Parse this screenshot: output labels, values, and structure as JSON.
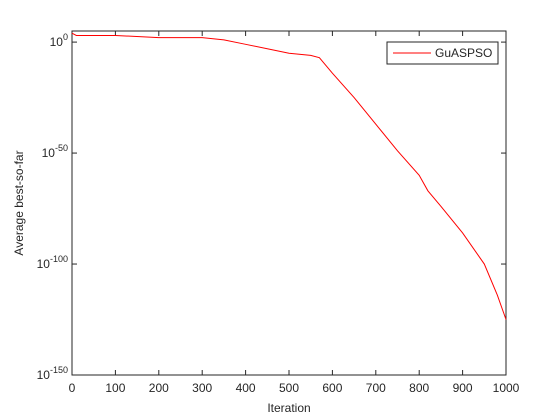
{
  "chart_data": {
    "type": "line",
    "xlabel": "Iteration",
    "ylabel": "Average best-so-far",
    "x": [
      0,
      10,
      100,
      200,
      300,
      350,
      400,
      450,
      500,
      550,
      570,
      600,
      650,
      700,
      750,
      800,
      820,
      850,
      900,
      950,
      980,
      1000
    ],
    "series": [
      {
        "name": "GuASPSO",
        "color": "#ff0000",
        "values": [
          10000.0,
          1000.0,
          1000.0,
          100.0,
          100.0,
          10.0,
          0.1,
          0.001,
          1e-05,
          1e-06,
          1e-07,
          1e-14,
          1e-25,
          1e-37,
          1e-49,
          1e-60,
          1e-67,
          1e-74,
          1e-86,
          1e-100,
          1e-114,
          1e-125
        ]
      }
    ],
    "xlim": [
      0,
      1000
    ],
    "xticks": [
      0,
      100,
      200,
      300,
      400,
      500,
      600,
      700,
      800,
      900,
      1000
    ],
    "ylim": [
      1e-150,
      100000.0
    ],
    "yscale": "log",
    "yticks": [
      {
        "value": 1e-150,
        "label": "10^-150"
      },
      {
        "value": 1e-100,
        "label": "10^-100"
      },
      {
        "value": 1e-50,
        "label": "10^-50"
      },
      {
        "value": 1,
        "label": "10^0"
      }
    ],
    "legend": "northeast"
  }
}
